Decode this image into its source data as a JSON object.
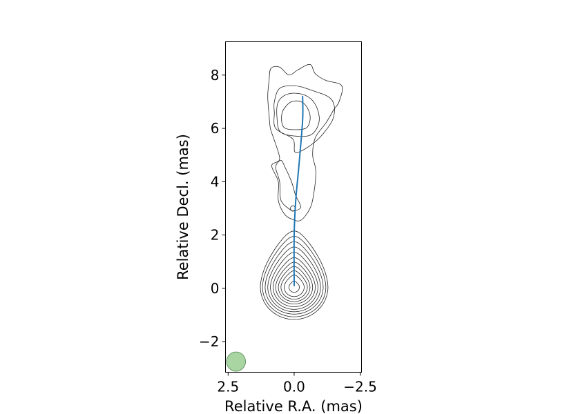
{
  "chart_data": {
    "type": "contour",
    "xlabel": "Relative R.A. (mas)",
    "ylabel": "Relative Decl. (mas)",
    "xlim": [
      2.6,
      -2.55
    ],
    "ylim": [
      -3.15,
      9.25
    ],
    "x_inverted": true,
    "xticks": [
      {
        "value": 2.5,
        "label": "2.5"
      },
      {
        "value": 0.0,
        "label": "0.0"
      },
      {
        "value": -2.5,
        "label": "−2.5"
      }
    ],
    "yticks": [
      {
        "value": -2,
        "label": "−2"
      },
      {
        "value": 0,
        "label": "0"
      },
      {
        "value": 2,
        "label": "2"
      },
      {
        "value": 4,
        "label": "4"
      },
      {
        "value": 6,
        "label": "6"
      },
      {
        "value": 8,
        "label": "8"
      }
    ],
    "grid": false,
    "core_contours": {
      "center": [
        0.0,
        0.05
      ],
      "levels": [
        {
          "rx": 1.28,
          "top": 2.1,
          "bottom": 1.22
        },
        {
          "rx": 1.2,
          "top": 1.9,
          "bottom": 1.12
        },
        {
          "rx": 1.1,
          "top": 1.7,
          "bottom": 1.02
        },
        {
          "rx": 1.0,
          "top": 1.5,
          "bottom": 0.93
        },
        {
          "rx": 0.9,
          "top": 1.3,
          "bottom": 0.84
        },
        {
          "rx": 0.8,
          "top": 1.1,
          "bottom": 0.74
        },
        {
          "rx": 0.7,
          "top": 0.93,
          "bottom": 0.64
        },
        {
          "rx": 0.6,
          "top": 0.77,
          "bottom": 0.55
        },
        {
          "rx": 0.5,
          "top": 0.61,
          "bottom": 0.46
        },
        {
          "rx": 0.38,
          "top": 0.45,
          "bottom": 0.36
        },
        {
          "rx": 0.2,
          "top": 0.22,
          "bottom": 0.2
        }
      ]
    },
    "jet_contours": [
      [
        [
          0.1,
          2.6
        ],
        [
          0.38,
          2.8
        ],
        [
          0.6,
          3.3
        ],
        [
          0.6,
          4.0
        ],
        [
          0.85,
          4.6
        ],
        [
          0.55,
          4.85
        ],
        [
          0.75,
          5.55
        ],
        [
          0.9,
          6.0
        ],
        [
          0.95,
          6.5
        ],
        [
          1.0,
          7.2
        ],
        [
          0.95,
          7.8
        ],
        [
          0.88,
          8.25
        ],
        [
          0.55,
          8.3
        ],
        [
          0.2,
          8.0
        ],
        [
          -0.15,
          8.2
        ],
        [
          -0.6,
          8.4
        ],
        [
          -0.8,
          8.05
        ],
        [
          -1.2,
          7.8
        ],
        [
          -1.8,
          7.6
        ],
        [
          -1.7,
          7.0
        ],
        [
          -1.5,
          6.7
        ],
        [
          -1.2,
          6.2
        ],
        [
          -0.8,
          5.65
        ],
        [
          -0.7,
          5.0
        ],
        [
          -0.82,
          4.4
        ],
        [
          -0.75,
          3.6
        ],
        [
          -0.6,
          3.0
        ],
        [
          -0.25,
          2.55
        ]
      ],
      [
        [
          0.15,
          2.95
        ],
        [
          0.5,
          3.3
        ],
        [
          0.55,
          4.0
        ],
        [
          0.7,
          4.55
        ],
        [
          0.5,
          4.8
        ],
        [
          0.35,
          4.55
        ],
        [
          0.1,
          4.0
        ],
        [
          -0.05,
          3.5
        ],
        [
          -0.25,
          3.05
        ],
        [
          0.0,
          2.9
        ]
      ],
      [
        [
          -0.05,
          5.1
        ],
        [
          0.05,
          5.6
        ],
        [
          0.7,
          6.0
        ],
        [
          0.75,
          6.6
        ],
        [
          0.75,
          7.0
        ],
        [
          0.55,
          7.5
        ],
        [
          0.0,
          7.6
        ],
        [
          -0.6,
          7.45
        ],
        [
          -1.4,
          7.1
        ],
        [
          -1.5,
          6.45
        ],
        [
          -1.1,
          5.8
        ],
        [
          -0.6,
          5.35
        ]
      ],
      [
        [
          0.5,
          5.85
        ],
        [
          0.65,
          6.4
        ],
        [
          0.6,
          7.0
        ],
        [
          0.2,
          7.3
        ],
        [
          -0.4,
          7.25
        ],
        [
          -0.8,
          6.9
        ],
        [
          -0.95,
          6.3
        ],
        [
          -0.7,
          5.8
        ],
        [
          -0.2,
          5.7
        ]
      ],
      [
        [
          0.4,
          6.05
        ],
        [
          0.45,
          6.6
        ],
        [
          0.1,
          7.0
        ],
        [
          -0.35,
          6.95
        ],
        [
          -0.6,
          6.5
        ],
        [
          -0.5,
          6.05
        ],
        [
          -0.1,
          5.95
        ]
      ]
    ],
    "small_island": {
      "center": [
        0.05,
        3.0
      ],
      "rx": 0.09,
      "ry": 0.1
    },
    "ridge_line": {
      "color": "#1f77b4",
      "points": [
        [
          0.0,
          0.1
        ],
        [
          0.0,
          2.0
        ],
        [
          -0.06,
          3.3
        ],
        [
          -0.18,
          4.6
        ],
        [
          -0.32,
          6.3
        ],
        [
          -0.32,
          7.2
        ]
      ]
    },
    "beam": {
      "center": [
        2.2,
        -2.75
      ],
      "diameter": 0.72,
      "fill": "#a8d5a2",
      "edge": "#6a9868"
    }
  }
}
